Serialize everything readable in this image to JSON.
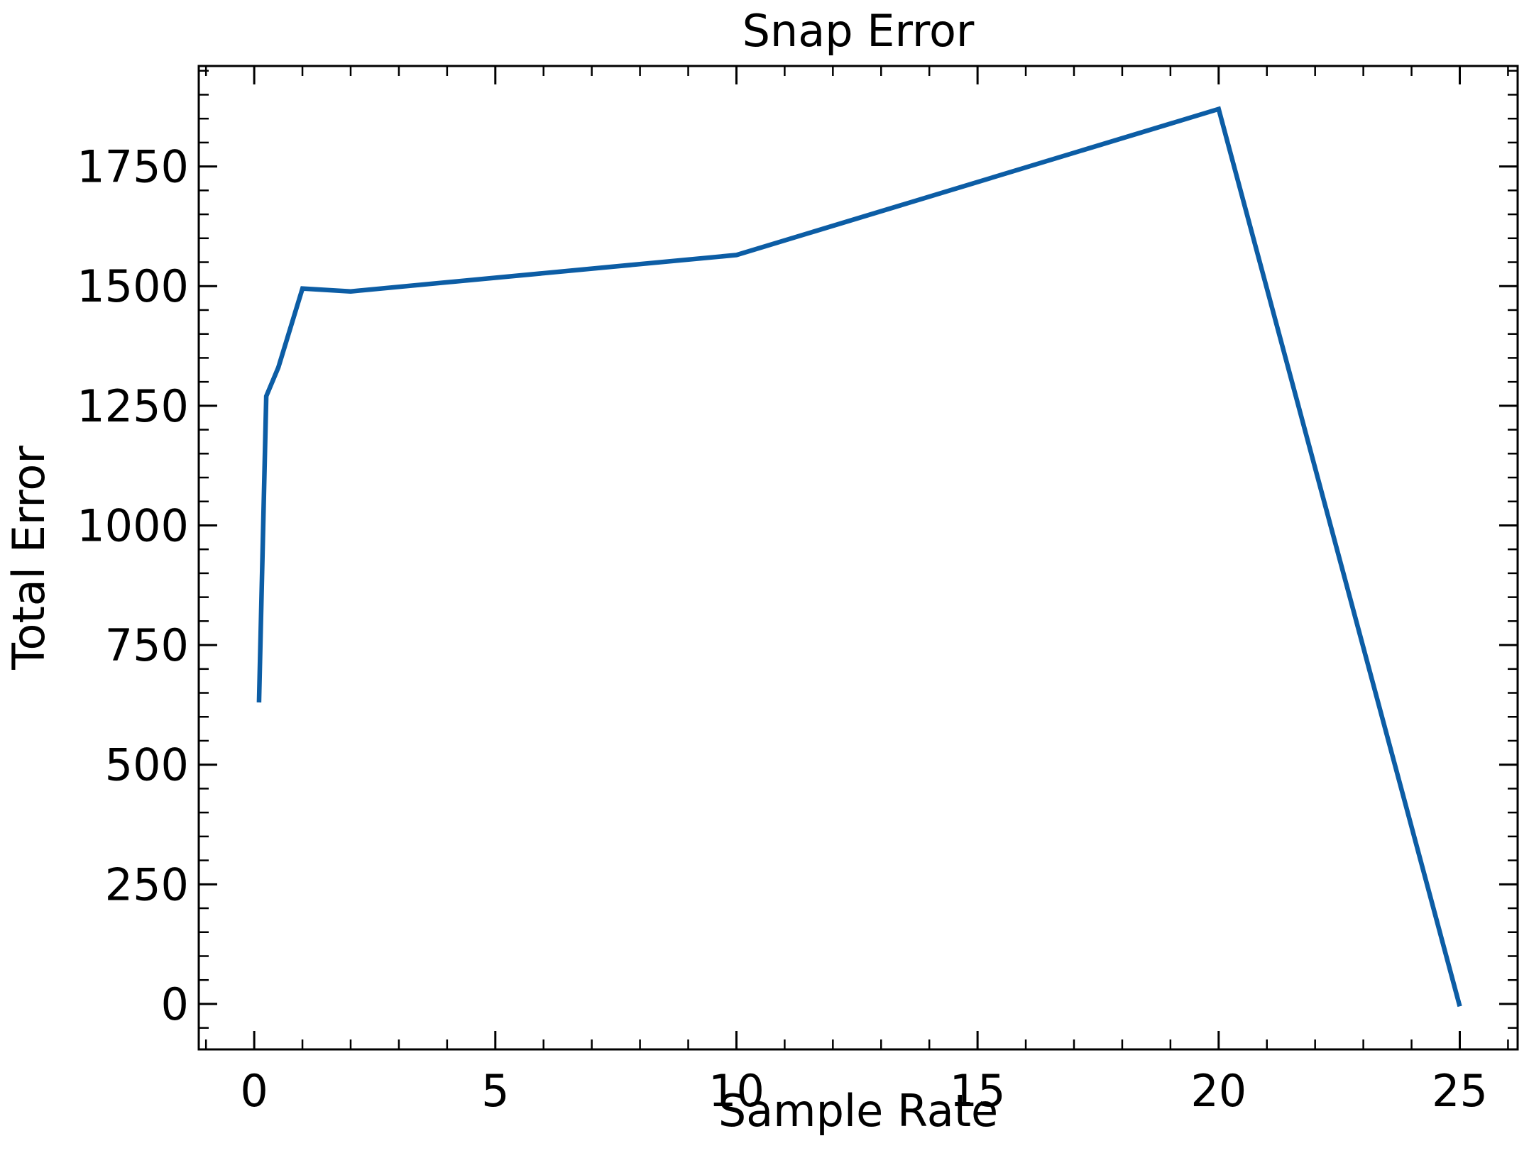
{
  "chart_data": {
    "type": "line",
    "title": "Snap Error",
    "xlabel": "Sample Rate",
    "ylabel": "Total Error",
    "xlim": [
      -1.15,
      26.2
    ],
    "ylim": [
      -95,
      1960
    ],
    "xticks": [
      0,
      5,
      10,
      15,
      20,
      25
    ],
    "xtick_labels": [
      "0",
      "5",
      "10",
      "15",
      "20",
      "25"
    ],
    "x_minor_step": 1,
    "yticks": [
      0,
      250,
      500,
      750,
      1000,
      1250,
      1500,
      1750
    ],
    "ytick_labels": [
      "0",
      "250",
      "500",
      "750",
      "1000",
      "1250",
      "1500",
      "1750"
    ],
    "y_minor_step": 50,
    "grid": false,
    "series": [
      {
        "color": "#0c5da5",
        "x": [
          0.1,
          0.25,
          0.5,
          1,
          2,
          10,
          20,
          25
        ],
        "y": [
          630,
          1270,
          1330,
          1495,
          1489,
          1565,
          1870,
          -5
        ]
      }
    ]
  }
}
